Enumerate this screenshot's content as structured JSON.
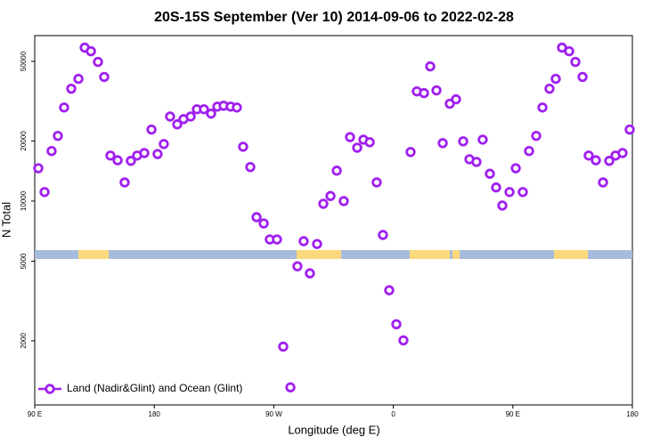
{
  "chart_data": {
    "type": "scatter",
    "title": "20S-15S September (Ver 10)   2014-09-06 to 2022-02-28",
    "xlabel": "Longitude (deg E)",
    "ylabel": "N Total",
    "log_y": true,
    "legend": "bottom-left",
    "xlim": [
      90,
      540
    ],
    "ylim": [
      955,
      67300
    ],
    "xticks": [
      {
        "value": 90,
        "label": "90 E"
      },
      180,
      {
        "value": 270,
        "label": "90 W"
      },
      {
        "value": 360,
        "label": "0"
      },
      {
        "value": 450,
        "label": "90 E"
      },
      {
        "value": 540,
        "label": "180"
      }
    ],
    "yticks": [
      2000,
      5000,
      10000,
      20000,
      50000
    ],
    "series": [
      {
        "name": "Land (Nadir&Glint) and Ocean (Glint)",
        "color": "#a020f0",
        "x": [
          92.7,
          97.4,
          102.7,
          107.4,
          112.1,
          117.5,
          122.9,
          127.6,
          132.3,
          137.6,
          142.3,
          147,
          152.4,
          157.7,
          162.4,
          167.1,
          172.5,
          177.9,
          182.5,
          187.2,
          191.9,
          197.3,
          202,
          207.4,
          212.1,
          217.4,
          222.8,
          227.5,
          232.2,
          237.5,
          242.2,
          246.9,
          252.3,
          257,
          262.4,
          267,
          272.4,
          277.1,
          282.5,
          287.8,
          292.5,
          297.2,
          302.6,
          307.3,
          312.7,
          317.4,
          322.7,
          327.4,
          332.8,
          337.5,
          342.2,
          347.5,
          352.2,
          356.9,
          362.3,
          367.6,
          373,
          377.7,
          383.1,
          387.8,
          392.5,
          397.2,
          402.5,
          407.2,
          412.6,
          417.3,
          422.6,
          427.3,
          432.7,
          437.4,
          442.1,
          447.5,
          452.2,
          457.5,
          462.2,
          467.6,
          472.3,
          477.6,
          482.3,
          487,
          492.4,
          497.1,
          502.5,
          507.1,
          512.5,
          517.9,
          522.6,
          527.3,
          532.6,
          538
        ],
        "values": [
          14600,
          11100,
          17800,
          21200,
          29400,
          36500,
          40900,
          58600,
          56200,
          49700,
          41800,
          16900,
          16000,
          12400,
          15900,
          16900,
          17400,
          22800,
          17200,
          19300,
          26500,
          24200,
          25700,
          26500,
          28800,
          28800,
          27400,
          29700,
          30000,
          29700,
          29400,
          18700,
          14800,
          8310,
          7730,
          6430,
          6430,
          1870,
          1170,
          4720,
          6300,
          4350,
          6100,
          9700,
          10600,
          14200,
          10000,
          20900,
          18500,
          20300,
          19700,
          12400,
          6770,
          3580,
          2420,
          2010,
          17600,
          35400,
          34700,
          47200,
          35800,
          19500,
          30700,
          32300,
          19900,
          16200,
          15700,
          20300,
          13700,
          11700,
          9500,
          11100,
          14600,
          11100,
          17800,
          21200,
          29400,
          36500,
          40900,
          58600,
          56200,
          49700,
          41800,
          16900,
          16000,
          12400,
          15900,
          16900,
          17400,
          22800
        ]
      }
    ]
  }
}
